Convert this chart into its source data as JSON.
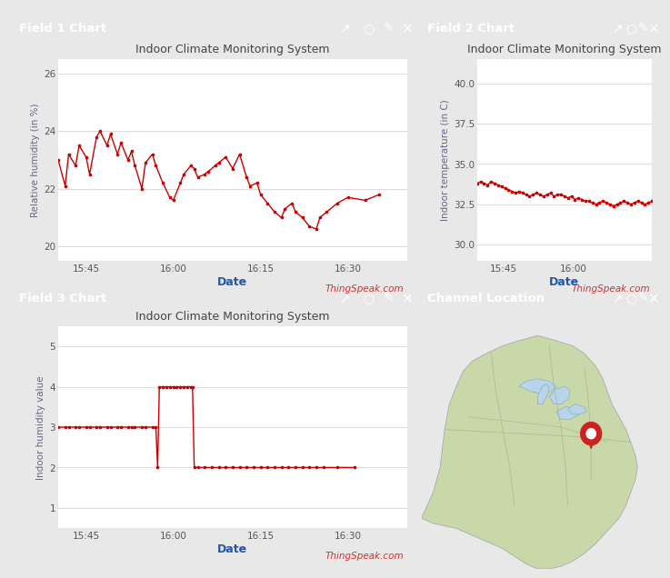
{
  "bg_color": "#e8e8e8",
  "header_color": "#4a90c4",
  "header_text_color": "#ffffff",
  "chart_bg": "#ffffff",
  "panel_bg": "#ffffff",
  "line_color": "#cc0000",
  "dot_color": "#cc0000",
  "title_color": "#444444",
  "xlabel_color": "#2255aa",
  "ylabel_color": "#666688",
  "watermark_color": "#cc3333",
  "grid_color": "#dddddd",
  "tick_color": "#555555",
  "map_water": "#b8d4e8",
  "map_land": "#c8d8a8",
  "map_border": "#aaaaaa",
  "panel1": {
    "header": "Field 1 Chart",
    "title": "Indoor Climate Monitoring System",
    "ylabel": "Relative humidity (in %)",
    "xlabel": "Date",
    "watermark": "ThingSpeak.com",
    "yticks": [
      20,
      22,
      24,
      26
    ],
    "xtick_labels": [
      "15:45",
      "16:00",
      "16:15",
      "16:30"
    ],
    "xtick_pos": [
      0.08,
      0.33,
      0.58,
      0.83
    ],
    "ylim": [
      19.5,
      26.5
    ],
    "data_x": [
      0.0,
      0.02,
      0.03,
      0.05,
      0.06,
      0.08,
      0.09,
      0.11,
      0.12,
      0.14,
      0.15,
      0.17,
      0.18,
      0.2,
      0.21,
      0.22,
      0.24,
      0.25,
      0.27,
      0.28,
      0.3,
      0.32,
      0.33,
      0.35,
      0.36,
      0.38,
      0.39,
      0.4,
      0.42,
      0.43,
      0.45,
      0.46,
      0.48,
      0.5,
      0.52,
      0.54,
      0.55,
      0.57,
      0.58,
      0.6,
      0.62,
      0.64,
      0.65,
      0.67,
      0.68,
      0.7,
      0.72,
      0.74,
      0.75,
      0.77,
      0.8,
      0.83,
      0.88,
      0.92
    ],
    "data_y": [
      23.0,
      22.1,
      23.2,
      22.8,
      23.5,
      23.1,
      22.5,
      23.8,
      24.0,
      23.5,
      23.9,
      23.2,
      23.6,
      23.0,
      23.3,
      22.8,
      22.0,
      22.9,
      23.2,
      22.8,
      22.2,
      21.7,
      21.6,
      22.2,
      22.5,
      22.8,
      22.7,
      22.4,
      22.5,
      22.6,
      22.8,
      22.9,
      23.1,
      22.7,
      23.2,
      22.4,
      22.1,
      22.2,
      21.8,
      21.5,
      21.2,
      21.0,
      21.3,
      21.5,
      21.2,
      21.0,
      20.7,
      20.6,
      21.0,
      21.2,
      21.5,
      21.7,
      21.6,
      21.8
    ]
  },
  "panel2": {
    "header": "Field 2 Chart",
    "title": "Indoor Climate Monitoring System",
    "ylabel": "Indoor temperature (in C)",
    "xlabel": "Date",
    "watermark": "ThingSpeak.com",
    "yticks": [
      30,
      32.5,
      35,
      37.5,
      40
    ],
    "xtick_labels": [
      "15:45",
      "16:00"
    ],
    "xtick_pos": [
      0.15,
      0.55
    ],
    "ylim": [
      29.0,
      41.5
    ],
    "data_x": [
      0.0,
      0.02,
      0.04,
      0.06,
      0.08,
      0.1,
      0.12,
      0.14,
      0.16,
      0.18,
      0.2,
      0.22,
      0.24,
      0.26,
      0.28,
      0.3,
      0.32,
      0.34,
      0.36,
      0.38,
      0.4,
      0.42,
      0.44,
      0.46,
      0.48,
      0.5,
      0.52,
      0.54,
      0.56,
      0.58,
      0.6,
      0.62,
      0.64,
      0.66,
      0.68,
      0.7,
      0.72,
      0.74,
      0.76,
      0.78,
      0.8,
      0.82,
      0.84,
      0.86,
      0.88,
      0.9,
      0.92,
      0.94,
      0.96,
      0.98,
      1.0,
      1.02,
      1.04,
      1.06
    ],
    "data_y": [
      33.8,
      33.9,
      33.8,
      33.7,
      33.9,
      33.8,
      33.7,
      33.6,
      33.5,
      33.4,
      33.3,
      33.2,
      33.3,
      33.2,
      33.1,
      33.0,
      33.1,
      33.2,
      33.1,
      33.0,
      33.1,
      33.2,
      33.0,
      33.1,
      33.1,
      33.0,
      32.9,
      33.0,
      32.8,
      32.9,
      32.8,
      32.7,
      32.7,
      32.6,
      32.5,
      32.6,
      32.7,
      32.6,
      32.5,
      32.4,
      32.5,
      32.6,
      32.7,
      32.6,
      32.5,
      32.6,
      32.7,
      32.6,
      32.5,
      32.6,
      32.7,
      32.6,
      32.5,
      32.6
    ]
  },
  "panel3": {
    "header": "Field 3 Chart",
    "title": "Indoor Climate Monitoring System",
    "ylabel": "Indoor humidity value",
    "xlabel": "Date",
    "watermark": "ThingSpeak.com",
    "yticks": [
      1,
      2,
      3,
      4,
      5
    ],
    "xtick_labels": [
      "15:45",
      "16:00",
      "16:15",
      "16:30"
    ],
    "xtick_pos": [
      0.08,
      0.33,
      0.58,
      0.83
    ],
    "ylim": [
      0.5,
      5.5
    ],
    "data_x": [
      0.0,
      0.02,
      0.03,
      0.05,
      0.06,
      0.08,
      0.09,
      0.11,
      0.12,
      0.14,
      0.15,
      0.17,
      0.18,
      0.2,
      0.21,
      0.22,
      0.24,
      0.25,
      0.27,
      0.28,
      0.285,
      0.29,
      0.3,
      0.31,
      0.32,
      0.33,
      0.34,
      0.35,
      0.36,
      0.37,
      0.38,
      0.385,
      0.39,
      0.4,
      0.42,
      0.44,
      0.46,
      0.48,
      0.5,
      0.52,
      0.54,
      0.56,
      0.58,
      0.6,
      0.62,
      0.64,
      0.66,
      0.68,
      0.7,
      0.72,
      0.74,
      0.76,
      0.8,
      0.85
    ],
    "data_y": [
      3,
      3,
      3,
      3,
      3,
      3,
      3,
      3,
      3,
      3,
      3,
      3,
      3,
      3,
      3,
      3,
      3,
      3,
      3,
      3,
      2,
      4,
      4,
      4,
      4,
      4,
      4,
      4,
      4,
      4,
      4,
      4,
      2,
      2,
      2,
      2,
      2,
      2,
      2,
      2,
      2,
      2,
      2,
      2,
      2,
      2,
      2,
      2,
      2,
      2,
      2,
      2,
      2,
      2
    ]
  },
  "panel4": {
    "header": "Channel Location"
  }
}
